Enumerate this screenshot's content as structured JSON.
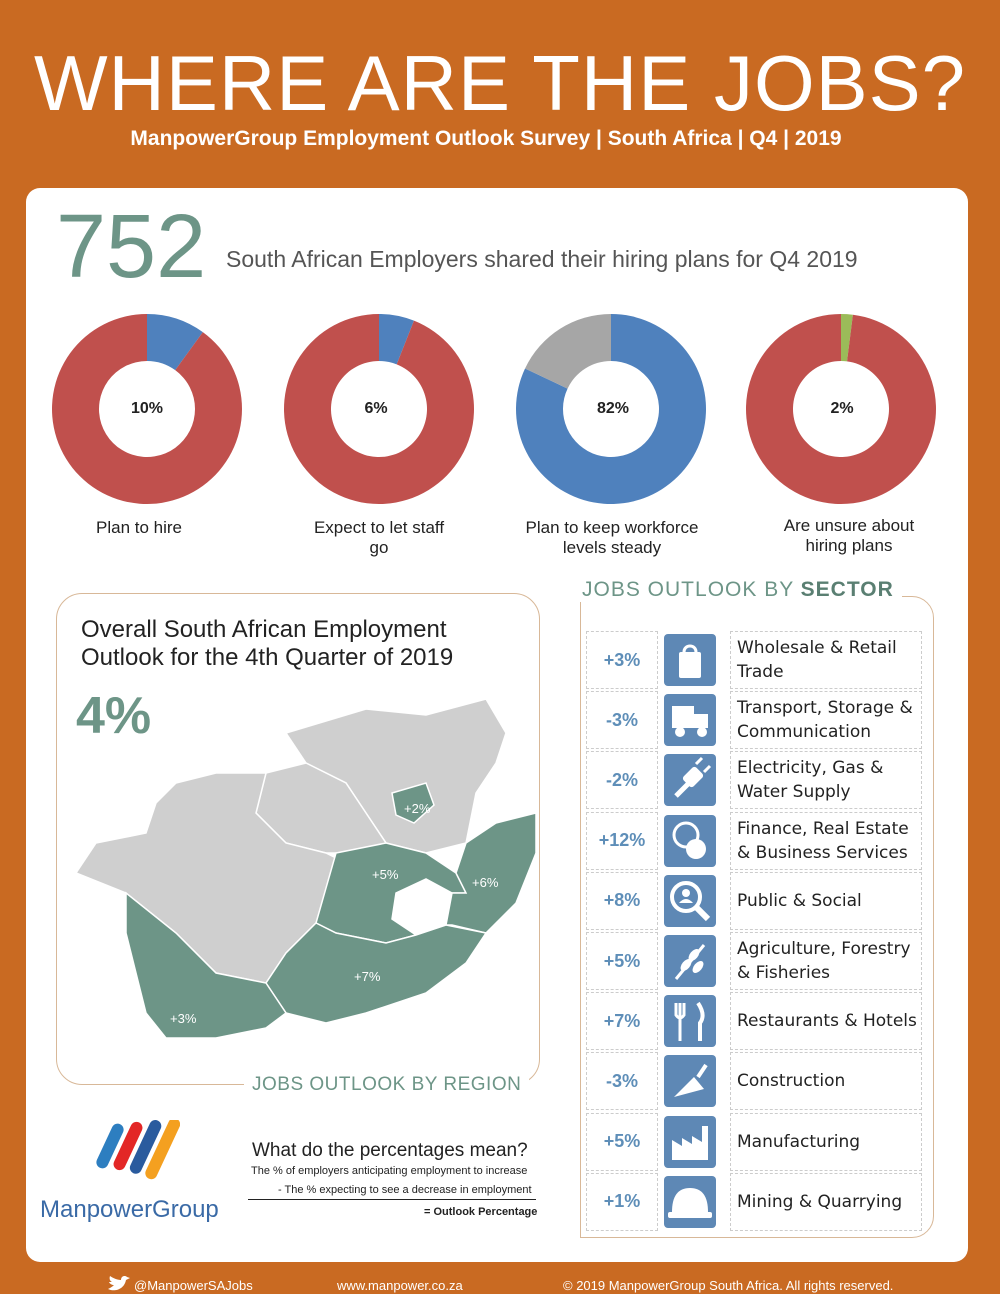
{
  "header": {
    "title": "WHERE ARE THE JOBS?",
    "subtitle": "ManpowerGroup Employment Outlook Survey | South Africa | Q4 | 2019"
  },
  "summary": {
    "employers_count": "752",
    "intro_text": "South African Employers shared their hiring plans for Q4 2019"
  },
  "colors": {
    "red": "#c0504d",
    "blue": "#4f81bd",
    "grey": "#a6a6a6",
    "green": "#9bbb59",
    "teal": "#6d9587",
    "orange": "#c96a22"
  },
  "chart_data": [
    {
      "type": "pie",
      "label": "Plan to hire",
      "center_label": "10%",
      "values": [
        10,
        90
      ]
    },
    {
      "type": "pie",
      "label": "Expect to let staff go",
      "center_label": "6%",
      "values": [
        6,
        94
      ]
    },
    {
      "type": "pie",
      "label": "Plan to keep workforce levels steady",
      "center_label": "82%",
      "values": [
        82,
        18
      ]
    },
    {
      "type": "pie",
      "label": "Are unsure about hiring plans",
      "center_label": "2%",
      "values": [
        2,
        98
      ]
    }
  ],
  "donuts": [
    {
      "pct": "10%",
      "label": "Plan to hire"
    },
    {
      "pct": "6%",
      "label": "Expect to let staff go"
    },
    {
      "pct": "82%",
      "label": "Plan to keep workforce levels steady"
    },
    {
      "pct": "2%",
      "label": "Are unsure about hiring plans"
    }
  ],
  "region": {
    "title_line1": "Overall South African Employment",
    "title_line2": "Outlook for the 4th Quarter of 2019",
    "overall_pct": "4%",
    "caption": "JOBS OUTLOOK BY REGION",
    "labels": [
      "+2%",
      "+5%",
      "+6%",
      "+7%",
      "+3%"
    ]
  },
  "sectors": {
    "heading_plain": "JOBS OUTLOOK BY ",
    "heading_bold": "SECTOR",
    "items": [
      {
        "pct": "+3%",
        "name": "Wholesale & Retail Trade",
        "icon": "shopping-bag-icon"
      },
      {
        "pct": "-3%",
        "name": "Transport, Storage & Communication",
        "icon": "truck-icon"
      },
      {
        "pct": "-2%",
        "name": "Electricity, Gas & Water Supply",
        "icon": "plug-icon"
      },
      {
        "pct": "+12%",
        "name": "Finance, Real Estate & Business Services",
        "icon": "coins-icon"
      },
      {
        "pct": "+8%",
        "name": "Public & Social",
        "icon": "magnifier-person-icon"
      },
      {
        "pct": "+5%",
        "name": "Agriculture, Forestry & Fisheries",
        "icon": "wheat-icon"
      },
      {
        "pct": "+7%",
        "name": "Restaurants & Hotels",
        "icon": "fork-knife-icon"
      },
      {
        "pct": "-3%",
        "name": "Construction",
        "icon": "trowel-icon"
      },
      {
        "pct": "+5%",
        "name": "Manufacturing",
        "icon": "factory-icon"
      },
      {
        "pct": "+1%",
        "name": "Mining & Quarrying",
        "icon": "hard-hat-icon"
      }
    ]
  },
  "legend": {
    "title": "What do the percentages mean?",
    "line1": "The % of employers anticipating employment to increase",
    "line2": "- The % expecting to see a decrease in employment",
    "line3": "= Outlook Percentage"
  },
  "brand": {
    "name": "ManpowerGroup"
  },
  "footer": {
    "twitter": "@ManpowerSAJobs",
    "website": "www.manpower.co.za",
    "copyright": "© 2019 ManpowerGroup South Africa.  All rights reserved."
  }
}
